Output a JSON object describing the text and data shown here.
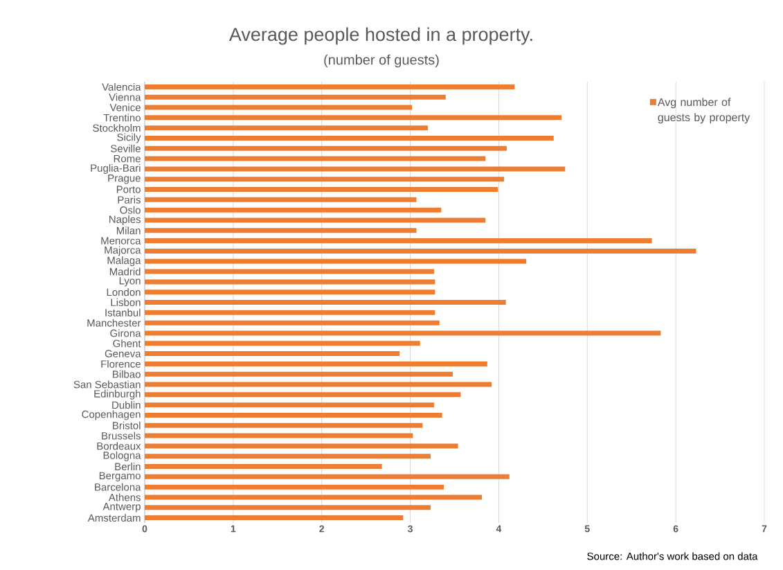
{
  "chart_data": {
    "type": "bar",
    "orientation": "horizontal",
    "title": "Average people hosted in a property.",
    "subtitle": "(number of guests)",
    "categories": [
      "Valencia",
      "Vienna",
      "Venice",
      "Trentino",
      "Stockholm",
      "Sicily",
      "Seville",
      "Rome",
      "Puglia-Bari",
      "Prague",
      "Porto",
      "Paris",
      "Oslo",
      "Naples",
      "Milan",
      "Menorca",
      "Majorca",
      "Malaga",
      "Madrid",
      "Lyon",
      "London",
      "Lisbon",
      "Istanbul",
      "Manchester",
      "Girona",
      "Ghent",
      "Geneva",
      "Florence",
      "Bilbao",
      "San Sebastian",
      "Edinburgh",
      "Dublin",
      "Copenhagen",
      "Bristol",
      "Brussels",
      "Bordeaux",
      "Bologna",
      "Berlin",
      "Bergamo",
      "Barcelona",
      "Athens",
      "Antwerp",
      "Amsterdam"
    ],
    "series": [
      {
        "name": "Avg number of guests by property",
        "color": "#ed7d31",
        "values": [
          4.18,
          3.4,
          3.02,
          4.71,
          3.2,
          4.62,
          4.09,
          3.85,
          4.75,
          4.06,
          3.99,
          3.07,
          3.35,
          3.85,
          3.07,
          5.73,
          6.23,
          4.31,
          3.27,
          3.28,
          3.28,
          4.08,
          3.28,
          3.33,
          5.83,
          3.11,
          2.88,
          3.87,
          3.48,
          3.92,
          3.57,
          3.27,
          3.36,
          3.14,
          3.03,
          3.54,
          3.23,
          2.68,
          4.12,
          3.38,
          3.81,
          3.23,
          2.92
        ]
      }
    ],
    "xlim": [
      0,
      7
    ],
    "xticks": [
      0,
      1,
      2,
      3,
      4,
      5,
      6,
      7
    ],
    "grid": "x",
    "legend": "top right",
    "annotations": [
      "Source: Author's work based on data"
    ]
  }
}
